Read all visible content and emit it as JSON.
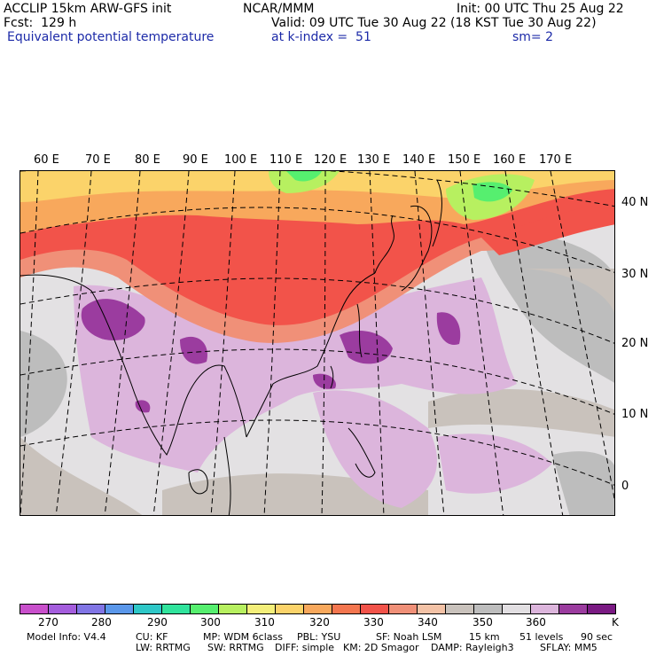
{
  "header": {
    "line1_left": "ACCLIP 15km ARW-GFS init",
    "line1_center": "NCAR/MMM",
    "line1_right": "Init: 00 UTC Thu 25 Aug 22",
    "line2_left": "Fcst:  129 h",
    "line2_right": "Valid: 09 UTC Tue 30 Aug 22 (18 KST Tue 30 Aug 22)",
    "line3_left": "Equivalent potential temperature",
    "line3_center": "at k-index =  51",
    "line3_right": "sm= 2"
  },
  "map": {
    "lon_labels": [
      "60 E",
      "70 E",
      "80 E",
      "90 E",
      "100 E",
      "110 E",
      "120 E",
      "130 E",
      "140 E",
      "150 E",
      "160 E",
      "170 E"
    ],
    "lat_labels": [
      "40 N",
      "30 N",
      "20 N",
      "10 N",
      "0"
    ]
  },
  "colorbar": {
    "colors": [
      "#c84fcb",
      "#a45ddd",
      "#8175e5",
      "#5a97ea",
      "#2ec7c7",
      "#30e39c",
      "#56ef6f",
      "#b7f060",
      "#f4ef7a",
      "#fbd36a",
      "#f8a85c",
      "#f4764f",
      "#f2534a",
      "#f09078",
      "#f3c2a6",
      "#c9c2bc",
      "#bdbdbd",
      "#e2dfe2",
      "#dcb5dc",
      "#9b3c9f",
      "#7a1a83"
    ],
    "labels": [
      "270",
      "280",
      "290",
      "300",
      "310",
      "320",
      "330",
      "340",
      "350",
      "360",
      "K"
    ],
    "label_positions_note": ""
  },
  "footer": {
    "line1": [
      "Model Info: V4.4",
      "CU: KF",
      "MP: WDM 6class",
      "PBL: YSU",
      "SF: Noah LSM",
      "15 km",
      "51 levels",
      "90 sec"
    ],
    "line2": [
      "LW: RRTMG",
      "SW: RRTMG",
      "DIFF: simple",
      "KM: 2D Smagor",
      "DAMP: Rayleigh3",
      "SFLAY: MM5"
    ]
  }
}
